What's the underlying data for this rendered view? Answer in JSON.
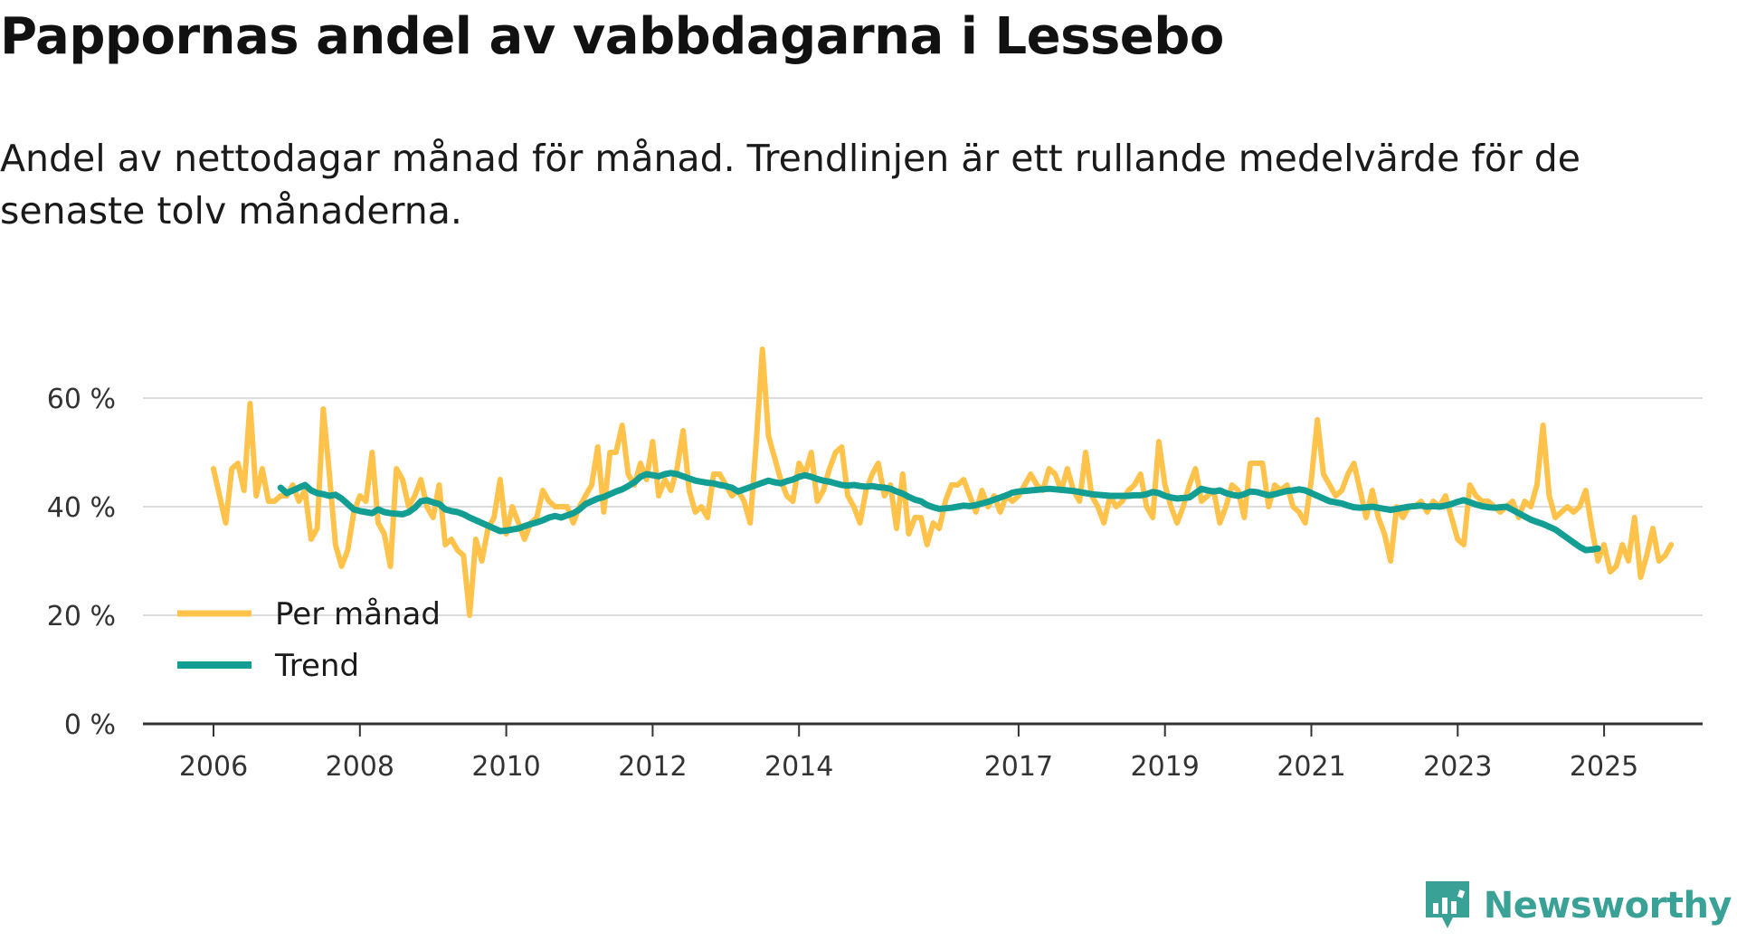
{
  "title": "Pappornas andel av vabbdagarna i Lessebo",
  "subtitle": "Andel av nettodagar månad för månad. Trendlinjen är ett rullande medelvärde för de senaste tolv månaderna.",
  "brand": "Newsworthy",
  "colors": {
    "per_month": "#ffc24a",
    "trend": "#139e94",
    "grid": "#dcdcdc",
    "axis": "#333333"
  },
  "chart_data": {
    "type": "line",
    "title": "Pappornas andel av vabbdagarna i Lessebo",
    "xlabel": "",
    "ylabel": "",
    "x_unit": "year",
    "xlim": [
      2006,
      2026
    ],
    "ylim": [
      0,
      70
    ],
    "y_ticks": [
      0,
      20,
      40,
      60
    ],
    "y_tick_labels": [
      "0 %",
      "20 %",
      "40 %",
      "60 %"
    ],
    "x_ticks": [
      2006,
      2008,
      2010,
      2012,
      2014,
      2017,
      2019,
      2021,
      2023,
      2025
    ],
    "x_tick_labels": [
      "2006",
      "2008",
      "2010",
      "2012",
      "2014",
      "2017",
      "2019",
      "2021",
      "2023",
      "2025"
    ],
    "legend": {
      "position": "bottom-left"
    },
    "series": [
      {
        "name": "Per månad",
        "x_start": 2006.0,
        "x_step": 0.08333,
        "values": [
          47,
          42,
          37,
          47,
          48,
          43,
          59,
          42,
          47,
          41,
          41,
          42,
          42,
          44,
          41,
          43,
          34,
          36,
          58,
          46,
          33,
          29,
          32,
          39,
          42,
          41,
          50,
          37,
          35,
          29,
          47,
          45,
          40,
          42,
          45,
          40,
          38,
          44,
          33,
          34,
          32,
          31,
          20,
          34,
          30,
          36,
          38,
          45,
          35,
          40,
          37,
          34,
          37,
          38,
          43,
          41,
          40,
          40,
          40,
          37,
          40,
          42,
          44,
          51,
          39,
          50,
          50,
          55,
          46,
          44,
          48,
          45,
          52,
          42,
          45,
          43,
          47,
          54,
          43,
          39,
          40,
          38,
          46,
          46,
          44,
          42,
          43,
          41,
          37,
          52,
          69,
          53,
          49,
          45,
          42,
          41,
          48,
          46,
          50,
          41,
          43,
          47,
          50,
          51,
          42,
          40,
          37,
          43,
          46,
          48,
          42,
          44,
          36,
          46,
          35,
          38,
          38,
          33,
          37,
          36,
          41,
          44,
          44,
          45,
          42,
          39,
          43,
          40,
          42,
          39,
          42,
          41,
          42,
          44,
          46,
          44,
          43,
          47,
          46,
          43,
          47,
          43,
          41,
          50,
          42,
          40,
          37,
          42,
          40,
          41,
          43,
          44,
          46,
          40,
          38,
          52,
          44,
          40,
          37,
          40,
          44,
          47,
          41,
          42,
          43,
          37,
          40,
          44,
          43,
          38,
          48,
          48,
          48,
          40,
          44,
          43,
          44,
          40,
          39,
          37,
          45,
          56,
          46,
          44,
          42,
          43,
          46,
          48,
          43,
          38,
          43,
          38,
          35,
          30,
          40,
          38,
          40,
          40,
          41,
          39,
          41,
          40,
          42,
          38,
          34,
          33,
          44,
          42,
          41,
          41,
          40,
          39,
          40,
          41,
          38,
          41,
          40,
          44,
          55,
          42,
          38,
          39,
          40,
          39,
          40,
          43,
          36,
          30,
          33,
          28,
          29,
          33,
          30,
          38,
          27,
          31,
          36,
          30,
          31,
          33
        ]
      },
      {
        "name": "Trend",
        "x_start": 2006.917,
        "x_step": 0.08333,
        "values": [
          43.5,
          42.5,
          43.0,
          43.5,
          44.0,
          43.0,
          42.5,
          42.3,
          42.0,
          42.2,
          41.5,
          40.5,
          39.5,
          39.2,
          39.0,
          38.8,
          39.5,
          39.0,
          38.8,
          38.7,
          38.6,
          39.0,
          39.8,
          41.0,
          41.2,
          40.8,
          40.5,
          39.5,
          39.2,
          39.0,
          38.6,
          38.0,
          37.5,
          37.0,
          36.5,
          36.0,
          35.5,
          35.6,
          35.8,
          36.0,
          36.4,
          36.8,
          37.1,
          37.5,
          38.0,
          38.3,
          38.0,
          38.4,
          38.8,
          39.5,
          40.5,
          41.0,
          41.5,
          41.8,
          42.3,
          42.8,
          43.2,
          43.8,
          44.5,
          45.5,
          46.0,
          45.8,
          45.6,
          46.0,
          46.2,
          46.0,
          45.6,
          45.2,
          44.8,
          44.6,
          44.4,
          44.3,
          44.0,
          43.8,
          43.5,
          42.8,
          43.2,
          43.6,
          44.0,
          44.4,
          44.8,
          44.5,
          44.3,
          44.7,
          45.0,
          45.5,
          45.8,
          45.5,
          45.1,
          44.8,
          44.6,
          44.3,
          44.0,
          43.9,
          44.0,
          43.8,
          43.7,
          43.8,
          43.6,
          43.5,
          43.3,
          42.8,
          42.4,
          41.8,
          41.3,
          41.0,
          40.3,
          39.9,
          39.6,
          39.7,
          39.8,
          40.0,
          40.2,
          40.1,
          40.3,
          40.6,
          40.9,
          41.3,
          41.7,
          42.1,
          42.6,
          42.8,
          42.9,
          43.0,
          43.1,
          43.2,
          43.3,
          43.2,
          43.1,
          43.0,
          42.9,
          42.7,
          42.5,
          42.3,
          42.2,
          42.1,
          42.0,
          42.0,
          42.0,
          42.0,
          42.1,
          42.1,
          42.3,
          42.7,
          42.5,
          42.0,
          41.7,
          41.5,
          41.6,
          41.7,
          42.5,
          43.3,
          43.0,
          42.8,
          43.0,
          42.5,
          42.2,
          42.0,
          42.3,
          42.8,
          42.7,
          42.4,
          42.1,
          42.3,
          42.6,
          42.9,
          43.0,
          43.2,
          43.0,
          42.5,
          42.0,
          41.5,
          41.0,
          40.8,
          40.6,
          40.2,
          39.9,
          39.8,
          39.9,
          40.0,
          39.8,
          39.6,
          39.4,
          39.6,
          39.8,
          40.0,
          40.1,
          40.2,
          40.0,
          40.1,
          40.0,
          40.2,
          40.5,
          40.9,
          41.2,
          40.8,
          40.4,
          40.1,
          39.9,
          39.8,
          39.9,
          40.0,
          39.4,
          38.8,
          38.2,
          37.6,
          37.2,
          36.8,
          36.3,
          35.8,
          35.0,
          34.2,
          33.4,
          32.6,
          32.0,
          32.1,
          32.3
        ]
      }
    ]
  }
}
